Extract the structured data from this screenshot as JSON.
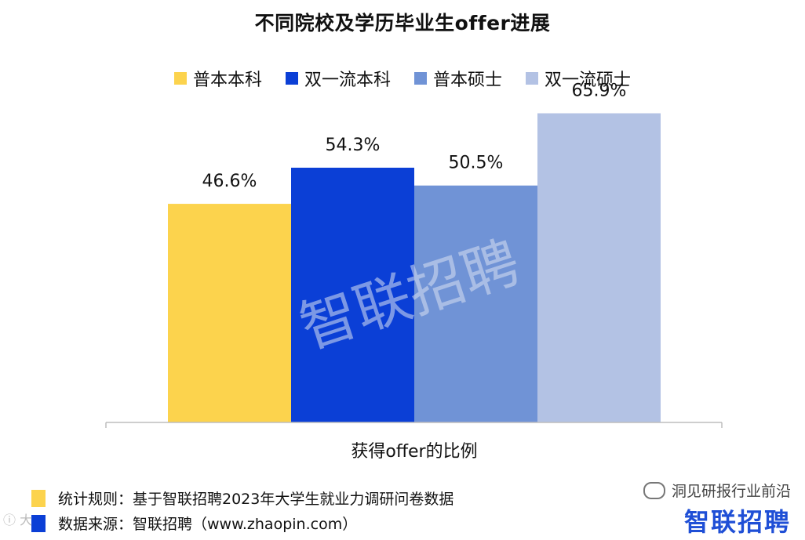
{
  "title": "不同院校及学历毕业生offer进展",
  "legend": [
    {
      "label": "普本本科",
      "color": "#FCD34D"
    },
    {
      "label": "双一流本科",
      "color": "#0B3FD6"
    },
    {
      "label": "普本硕士",
      "color": "#7093D6"
    },
    {
      "label": "双一流硕士",
      "color": "#B3C2E4"
    }
  ],
  "chart_data": {
    "type": "bar",
    "categories": [
      "获得offer的比例"
    ],
    "series": [
      {
        "name": "普本本科",
        "values": [
          46.6
        ],
        "label": "46.6%",
        "color": "#FCD34D"
      },
      {
        "name": "双一流本科",
        "values": [
          54.3
        ],
        "label": "54.3%",
        "color": "#0B3FD6"
      },
      {
        "name": "普本硕士",
        "values": [
          50.5
        ],
        "label": "50.5%",
        "color": "#7093D6"
      },
      {
        "name": "双一流硕士",
        "values": [
          65.9
        ],
        "label": "65.9%",
        "color": "#B3C2E4"
      }
    ],
    "title": "不同院校及学历毕业生offer进展",
    "xlabel": "获得offer的比例",
    "ylabel": "",
    "ylim": [
      0,
      70
    ],
    "grid": false,
    "legend_position": "top"
  },
  "watermark_text": "智联招聘",
  "footer": {
    "rule_label": "统计规则：基于智联招聘2023年大学生就业力调研问卷数据",
    "rule_color": "#FCD34D",
    "source_label": "数据来源：智联招聘（www.zhaopin.com）",
    "source_color": "#0B3FD6"
  },
  "overlay": {
    "account": "洞见研报行业前沿",
    "brand": "智联招聘",
    "corner": "ⓘ 大"
  }
}
